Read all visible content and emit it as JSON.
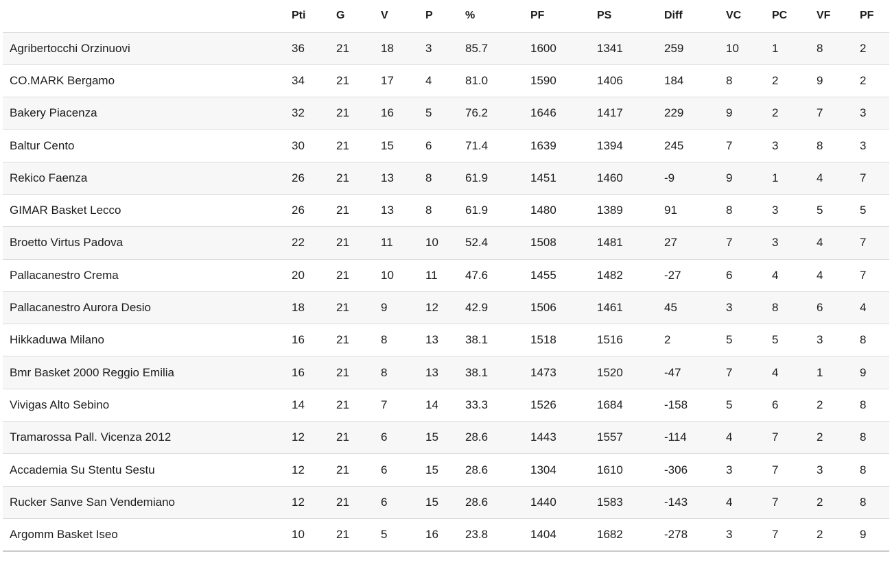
{
  "table": {
    "columns": [
      {
        "key": "team",
        "label": ""
      },
      {
        "key": "pti",
        "label": "Pti"
      },
      {
        "key": "g",
        "label": "G"
      },
      {
        "key": "v",
        "label": "V"
      },
      {
        "key": "p",
        "label": "P"
      },
      {
        "key": "pct",
        "label": "%"
      },
      {
        "key": "pf",
        "label": "PF"
      },
      {
        "key": "ps",
        "label": "PS"
      },
      {
        "key": "diff",
        "label": "Diff"
      },
      {
        "key": "vc",
        "label": "VC"
      },
      {
        "key": "pc",
        "label": "PC"
      },
      {
        "key": "vf",
        "label": "VF"
      },
      {
        "key": "pf2",
        "label": "PF"
      }
    ],
    "rows": [
      [
        "Agribertocchi Orzinuovi",
        "36",
        "21",
        "18",
        "3",
        "85.7",
        "1600",
        "1341",
        "259",
        "10",
        "1",
        "8",
        "2"
      ],
      [
        "CO.MARK Bergamo",
        "34",
        "21",
        "17",
        "4",
        "81.0",
        "1590",
        "1406",
        "184",
        "8",
        "2",
        "9",
        "2"
      ],
      [
        "Bakery Piacenza",
        "32",
        "21",
        "16",
        "5",
        "76.2",
        "1646",
        "1417",
        "229",
        "9",
        "2",
        "7",
        "3"
      ],
      [
        "Baltur Cento",
        "30",
        "21",
        "15",
        "6",
        "71.4",
        "1639",
        "1394",
        "245",
        "7",
        "3",
        "8",
        "3"
      ],
      [
        "Rekico Faenza",
        "26",
        "21",
        "13",
        "8",
        "61.9",
        "1451",
        "1460",
        "-9",
        "9",
        "1",
        "4",
        "7"
      ],
      [
        "GIMAR Basket Lecco",
        "26",
        "21",
        "13",
        "8",
        "61.9",
        "1480",
        "1389",
        "91",
        "8",
        "3",
        "5",
        "5"
      ],
      [
        "Broetto Virtus Padova",
        "22",
        "21",
        "11",
        "10",
        "52.4",
        "1508",
        "1481",
        "27",
        "7",
        "3",
        "4",
        "7"
      ],
      [
        "Pallacanestro Crema",
        "20",
        "21",
        "10",
        "11",
        "47.6",
        "1455",
        "1482",
        "-27",
        "6",
        "4",
        "4",
        "7"
      ],
      [
        "Pallacanestro Aurora Desio",
        "18",
        "21",
        "9",
        "12",
        "42.9",
        "1506",
        "1461",
        "45",
        "3",
        "8",
        "6",
        "4"
      ],
      [
        "Hikkaduwa Milano",
        "16",
        "21",
        "8",
        "13",
        "38.1",
        "1518",
        "1516",
        "2",
        "5",
        "5",
        "3",
        "8"
      ],
      [
        "Bmr Basket 2000 Reggio Emilia",
        "16",
        "21",
        "8",
        "13",
        "38.1",
        "1473",
        "1520",
        "-47",
        "7",
        "4",
        "1",
        "9"
      ],
      [
        "Vivigas Alto Sebino",
        "14",
        "21",
        "7",
        "14",
        "33.3",
        "1526",
        "1684",
        "-158",
        "5",
        "6",
        "2",
        "8"
      ],
      [
        "Tramarossa Pall. Vicenza 2012",
        "12",
        "21",
        "6",
        "15",
        "28.6",
        "1443",
        "1557",
        "-114",
        "4",
        "7",
        "2",
        "8"
      ],
      [
        "Accademia Su Stentu Sestu",
        "12",
        "21",
        "6",
        "15",
        "28.6",
        "1304",
        "1610",
        "-306",
        "3",
        "7",
        "3",
        "8"
      ],
      [
        "Rucker Sanve San Vendemiano",
        "12",
        "21",
        "6",
        "15",
        "28.6",
        "1440",
        "1583",
        "-143",
        "4",
        "7",
        "2",
        "8"
      ],
      [
        "Argomm Basket Iseo",
        "10",
        "21",
        "5",
        "16",
        "23.8",
        "1404",
        "1682",
        "-278",
        "3",
        "7",
        "2",
        "9"
      ]
    ]
  },
  "colors": {
    "row_stripe": "#f7f7f7",
    "row_separator": "#dcdcdc",
    "table_bottom_border": "#c9c9c9",
    "text": "#1c1c1c",
    "background": "#ffffff"
  }
}
